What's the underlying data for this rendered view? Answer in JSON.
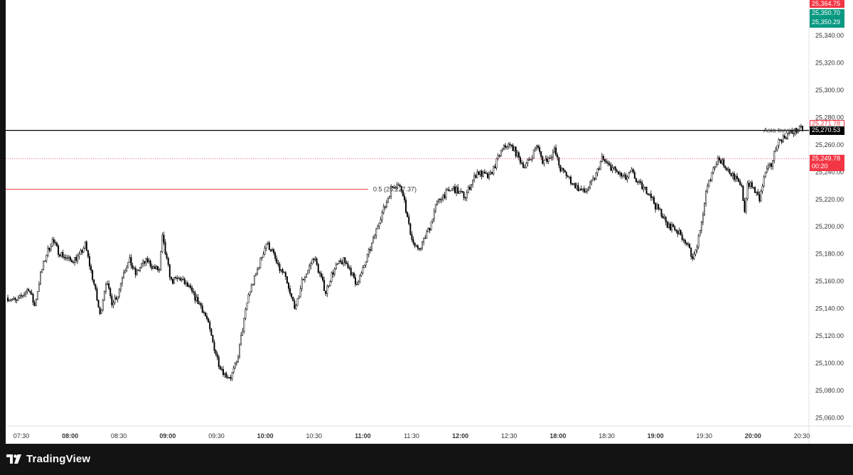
{
  "brand": {
    "name": "TradingView",
    "logo_icon": "tradingview-logo-icon"
  },
  "colors": {
    "up": "#ffffff",
    "down": "#000000",
    "wick": "#000000",
    "red": "#f23645",
    "teal": "#089981",
    "black": "#000000"
  },
  "chart_data": {
    "type": "candlestick",
    "ylim": [
      25054,
      25366
    ],
    "y_ticks": [
      25060,
      25080,
      25100,
      25120,
      25140,
      25160,
      25180,
      25200,
      25220,
      25240,
      25260,
      25280,
      25300,
      25320,
      25340
    ],
    "y_tick_labels": [
      "25,060.00",
      "25,080.00",
      "25,100.00",
      "25,120.00",
      "25,140.00",
      "25,160.00",
      "25,180.00",
      "25,200.00",
      "25,220.00",
      "25,240.00",
      "25,260.00",
      "25,280.00",
      "25,300.00",
      "25,320.00",
      "25,340.00"
    ],
    "x_ticks": [
      "07:30",
      "08:00",
      "08:30",
      "09:00",
      "09:30",
      "10:00",
      "10:30",
      "11:00",
      "11:30",
      "12:00",
      "12:30",
      "18:00",
      "18:30",
      "19:00",
      "19:30",
      "20:00",
      "20:30"
    ],
    "x_ticks_bold": [
      "08:00",
      "09:00",
      "10:00",
      "11:00",
      "12:00",
      "18:00",
      "19:00",
      "20:00"
    ],
    "price_anchors": [
      [
        0,
        25148
      ],
      [
        6,
        25145
      ],
      [
        10,
        25150
      ],
      [
        14,
        25155
      ],
      [
        18,
        25142
      ],
      [
        22,
        25165
      ],
      [
        26,
        25180
      ],
      [
        30,
        25190
      ],
      [
        34,
        25182
      ],
      [
        38,
        25178
      ],
      [
        42,
        25175
      ],
      [
        48,
        25178
      ],
      [
        52,
        25187
      ],
      [
        55,
        25172
      ],
      [
        58,
        25158
      ],
      [
        62,
        25135
      ],
      [
        66,
        25160
      ],
      [
        70,
        25145
      ],
      [
        74,
        25150
      ],
      [
        78,
        25168
      ],
      [
        82,
        25175
      ],
      [
        86,
        25165
      ],
      [
        90,
        25172
      ],
      [
        94,
        25175
      ],
      [
        98,
        25170
      ],
      [
        102,
        25168
      ],
      [
        104,
        25192
      ],
      [
        107,
        25175
      ],
      [
        110,
        25160
      ],
      [
        116,
        25162
      ],
      [
        122,
        25155
      ],
      [
        126,
        25148
      ],
      [
        130,
        25142
      ],
      [
        134,
        25132
      ],
      [
        138,
        25115
      ],
      [
        142,
        25100
      ],
      [
        146,
        25092
      ],
      [
        150,
        25090
      ],
      [
        154,
        25100
      ],
      [
        158,
        25125
      ],
      [
        162,
        25150
      ],
      [
        166,
        25162
      ],
      [
        170,
        25175
      ],
      [
        174,
        25188
      ],
      [
        178,
        25182
      ],
      [
        182,
        25170
      ],
      [
        186,
        25165
      ],
      [
        190,
        25150
      ],
      [
        194,
        25140
      ],
      [
        198,
        25160
      ],
      [
        202,
        25168
      ],
      [
        206,
        25178
      ],
      [
        210,
        25165
      ],
      [
        214,
        25152
      ],
      [
        218,
        25165
      ],
      [
        222,
        25172
      ],
      [
        226,
        25175
      ],
      [
        230,
        25170
      ],
      [
        234,
        25158
      ],
      [
        238,
        25165
      ],
      [
        242,
        25178
      ],
      [
        246,
        25190
      ],
      [
        250,
        25205
      ],
      [
        254,
        25215
      ],
      [
        258,
        25228
      ],
      [
        262,
        25232
      ],
      [
        266,
        25225
      ],
      [
        270,
        25200
      ],
      [
        273,
        25188
      ],
      [
        276,
        25182
      ],
      [
        280,
        25190
      ],
      [
        284,
        25200
      ],
      [
        288,
        25215
      ],
      [
        292,
        25222
      ],
      [
        296,
        25225
      ],
      [
        300,
        25228
      ],
      [
        304,
        25225
      ],
      [
        308,
        25222
      ],
      [
        312,
        25232
      ],
      [
        316,
        25240
      ],
      [
        320,
        25238
      ],
      [
        324,
        25236
      ],
      [
        328,
        25245
      ],
      [
        332,
        25255
      ],
      [
        336,
        25260
      ],
      [
        340,
        25258
      ],
      [
        344,
        25250
      ],
      [
        348,
        25244
      ],
      [
        352,
        25250
      ],
      [
        356,
        25260
      ],
      [
        360,
        25248
      ],
      [
        364,
        25250
      ],
      [
        368,
        25256
      ],
      [
        372,
        25242
      ],
      [
        376,
        25238
      ],
      [
        380,
        25232
      ],
      [
        384,
        25228
      ],
      [
        388,
        25225
      ],
      [
        392,
        25230
      ],
      [
        396,
        25238
      ],
      [
        400,
        25250
      ],
      [
        404,
        25245
      ],
      [
        408,
        25242
      ],
      [
        412,
        25238
      ],
      [
        416,
        25235
      ],
      [
        420,
        25240
      ],
      [
        424,
        25232
      ],
      [
        428,
        25228
      ],
      [
        432,
        25225
      ],
      [
        436,
        25215
      ],
      [
        440,
        25210
      ],
      [
        444,
        25200
      ],
      [
        448,
        25200
      ],
      [
        452,
        25195
      ],
      [
        456,
        25190
      ],
      [
        460,
        25180
      ],
      [
        462,
        25178
      ],
      [
        466,
        25195
      ],
      [
        470,
        25225
      ],
      [
        474,
        25240
      ],
      [
        478,
        25250
      ],
      [
        482,
        25246
      ],
      [
        486,
        25240
      ],
      [
        490,
        25235
      ],
      [
        494,
        25228
      ],
      [
        496,
        25212
      ],
      [
        498,
        25232
      ],
      [
        502,
        25228
      ],
      [
        506,
        25220
      ],
      [
        510,
        25240
      ],
      [
        514,
        25245
      ],
      [
        518,
        25262
      ],
      [
        522,
        25265
      ],
      [
        526,
        25268
      ],
      [
        530,
        25270
      ],
      [
        535,
        25272
      ]
    ],
    "levels": [
      {
        "name": "asia-buyside-line",
        "label": "Asia buyside",
        "price": 25270.53,
        "price_label": "25,270.53",
        "style": "solid",
        "color": "#000000"
      },
      {
        "name": "half-level-line",
        "label": "0.5 (25,227.37)",
        "price": 25227.37,
        "style": "solid",
        "color": "#f23645",
        "ends_at": "11:00"
      },
      {
        "name": "current-price-line",
        "price": 25249.78,
        "style": "dotted",
        "color": "#f23645"
      }
    ],
    "price_tags": [
      {
        "name": "tag-high",
        "value": "25,364.75",
        "bg": "#f23645",
        "color": "#ffffff"
      },
      {
        "name": "tag-teal-1",
        "value": "25,350.70",
        "bg": "#089981",
        "color": "#ffffff"
      },
      {
        "name": "tag-teal-2",
        "value": "25,350.29",
        "bg": "#089981",
        "color": "#ffffff"
      },
      {
        "name": "tag-outline",
        "value": "25,271.78",
        "bg": "#ffffff",
        "color": "#f23645"
      },
      {
        "name": "tag-asia",
        "value": "25,270.53",
        "bg": "#000000",
        "color": "#ffffff"
      },
      {
        "name": "tag-current",
        "value": "25,249.78",
        "sub": "00:20",
        "bg": "#f23645",
        "color": "#ffffff"
      }
    ]
  }
}
